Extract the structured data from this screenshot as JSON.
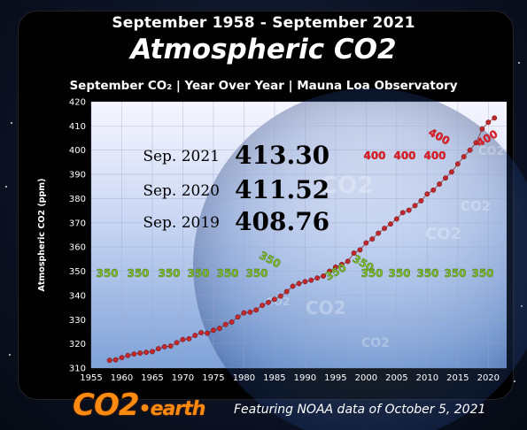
{
  "header": {
    "range": "September 1958 - September 2021",
    "title": "Atmospheric CO2",
    "subtitle": "September CO₂  | Year Over Year  | Mauna Loa Observatory"
  },
  "readings": [
    {
      "label": "Sep. 2021",
      "value": "413.30"
    },
    {
      "label": "Sep. 2020",
      "value": "411.52"
    },
    {
      "label": "Sep. 2019",
      "value": "408.76"
    }
  ],
  "markers_350": [
    "350",
    "350",
    "350",
    "350",
    "350",
    "350",
    "350",
    "350",
    "350",
    "350",
    "350",
    "350",
    "350",
    "350"
  ],
  "markers_400": [
    "400",
    "400",
    "400",
    "400",
    "400"
  ],
  "brand": {
    "logo_main": "CO2",
    "logo_sep": "•",
    "logo_tail": "earth"
  },
  "footer": {
    "text": "Featuring NOAA data of October 5, 2021"
  },
  "colors": {
    "marker_350": "#7fbf2a",
    "marker_400": "#e8202a",
    "series": "#c0282c",
    "logo": "#ff8a10"
  },
  "chart_data": {
    "type": "scatter",
    "title": "Atmospheric CO2",
    "ylabel": "Atmospheric  CO2  (ppm)",
    "xlabel": "",
    "xlim": [
      1955,
      2023
    ],
    "ylim": [
      310,
      420
    ],
    "xticks": [
      1955,
      1960,
      1965,
      1970,
      1975,
      1980,
      1985,
      1990,
      1995,
      2000,
      2005,
      2010,
      2015,
      2020
    ],
    "yticks": [
      310,
      320,
      330,
      340,
      350,
      360,
      370,
      380,
      390,
      400,
      410,
      420
    ],
    "grid": true,
    "series": [
      {
        "x": [
          1958,
          1959,
          1960,
          1961,
          1962,
          1963,
          1964,
          1965,
          1966,
          1967,
          1968,
          1969,
          1970,
          1971,
          1972,
          1973,
          1974,
          1975,
          1976,
          1977,
          1978,
          1979,
          1980,
          1981,
          1982,
          1983,
          1984,
          1985,
          1986,
          1987,
          1988,
          1989,
          1990,
          1991,
          1992,
          1993,
          1994,
          1995,
          1996,
          1997,
          1998,
          1999,
          2000,
          2001,
          2002,
          2003,
          2004,
          2005,
          2006,
          2007,
          2008,
          2009,
          2010,
          2011,
          2012,
          2013,
          2014,
          2015,
          2016,
          2017,
          2018,
          2019,
          2020,
          2021
        ],
        "values": [
          313.2,
          313.4,
          314.3,
          315.2,
          315.8,
          316.2,
          316.5,
          316.8,
          318.0,
          318.8,
          319.1,
          320.5,
          321.8,
          322.1,
          323.5,
          324.6,
          324.4,
          325.6,
          326.4,
          328.0,
          329.0,
          331.1,
          332.8,
          333.1,
          334.0,
          335.9,
          337.1,
          338.4,
          339.7,
          341.6,
          343.8,
          344.9,
          345.7,
          346.3,
          347.2,
          348.0,
          350.0,
          351.7,
          352.8,
          354.1,
          357.5,
          358.8,
          361.7,
          363.3,
          365.7,
          367.7,
          369.5,
          371.6,
          374.2,
          375.2,
          377.1,
          379.1,
          381.9,
          383.5,
          386.0,
          388.5,
          391.0,
          394.3,
          397.3,
          400.0,
          403.1,
          408.76,
          411.52,
          413.3
        ]
      }
    ]
  }
}
